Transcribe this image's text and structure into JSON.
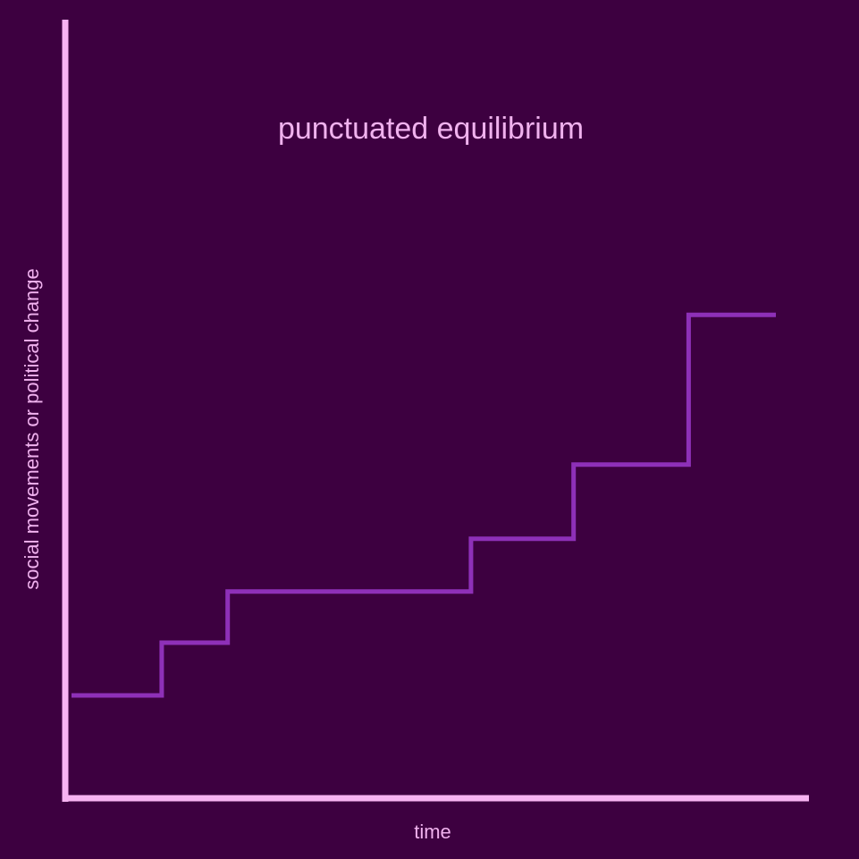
{
  "colors": {
    "background": "#3d0040",
    "axis": "#f7b3f2",
    "text": "#f0b2ee",
    "line": "#8e30b8"
  },
  "chart_data": {
    "type": "line",
    "title": "punctuated equilibrium",
    "xlabel": "time",
    "ylabel": "social movements or political change",
    "grid": false,
    "legend": "none",
    "xlim": [
      0,
      100
    ],
    "ylim": [
      0,
      100
    ],
    "series": [
      {
        "step": "post",
        "x": [
          0,
          12.3,
          21.3,
          54.5,
          68.5,
          84.2,
          96.1
        ],
        "y": [
          13.1,
          20.0,
          26.7,
          33.6,
          43.3,
          62.9,
          62.9
        ]
      }
    ]
  }
}
